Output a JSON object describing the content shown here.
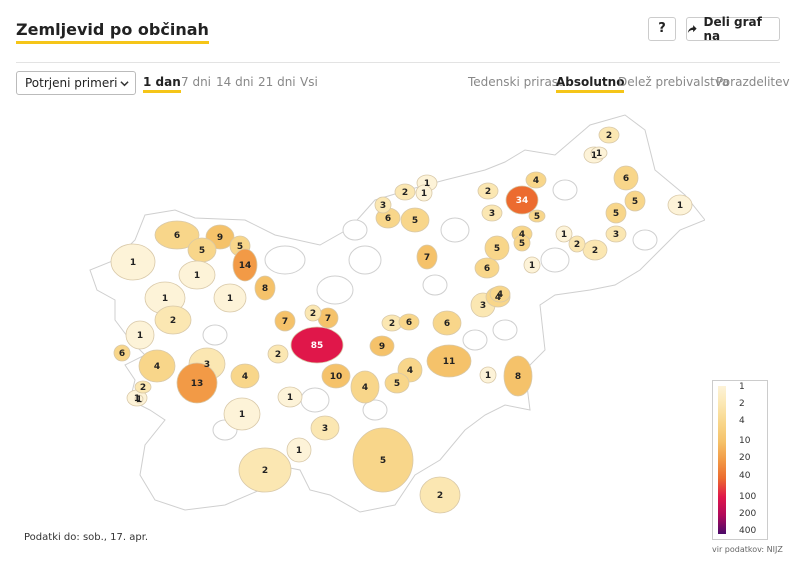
{
  "header": {
    "title": "Zemljevid po občinah",
    "help_label": "?",
    "share_label": "Deli graf na"
  },
  "controls": {
    "select_value": "Potrjeni primeri",
    "ranges": [
      "1 dan",
      "7 dni",
      "14 dni",
      "21 dni",
      "Vsi"
    ],
    "active_range": "1 dan",
    "metrics": [
      "Tedenski prirast",
      "Absolutno",
      "Delež prebivalstva",
      "Porazdelitev"
    ],
    "active_metric": "Absolutno"
  },
  "legend": {
    "ticks": [
      "1",
      "2",
      "4",
      "10",
      "20",
      "40",
      "100",
      "200",
      "400"
    ],
    "colors": [
      "#fdf3d8",
      "#fbe7b2",
      "#f8d68a",
      "#f5c26a",
      "#f29a46",
      "#ec6b2f",
      "#e0174a",
      "#b00a5a",
      "#4b0a69"
    ]
  },
  "footer": {
    "data_date": "Podatki do: sob., 17. apr.",
    "source": "vir podatkov: NIJZ"
  },
  "map": {
    "regions": [
      {
        "name": "kranjska-gora",
        "value": 6
      },
      {
        "name": "jesenice",
        "value": 9
      },
      {
        "name": "bovec",
        "value": 1
      },
      {
        "name": "bohinj",
        "value": 5
      },
      {
        "name": "trzic",
        "value": 5
      },
      {
        "name": "kranj",
        "value": 14
      },
      {
        "name": "radovljica",
        "value": 1
      },
      {
        "name": "tolmin",
        "value": 1
      },
      {
        "name": "kamnik",
        "value": 8
      },
      {
        "name": "skofja-loka",
        "value": 1
      },
      {
        "name": "kobarid",
        "value": 1
      },
      {
        "name": "cerkno",
        "value": 2
      },
      {
        "name": "nova-gorica",
        "value": 6
      },
      {
        "name": "ajdovscina",
        "value": 4
      },
      {
        "name": "idrija",
        "value": 3
      },
      {
        "name": "sezana",
        "value": 13
      },
      {
        "name": "koper",
        "value": 1
      },
      {
        "name": "izola",
        "value": 2
      },
      {
        "name": "piran",
        "value": 1
      },
      {
        "name": "ljubljana",
        "value": 85
      },
      {
        "name": "vrhnika",
        "value": 2
      },
      {
        "name": "logatec",
        "value": 4
      },
      {
        "name": "domzale",
        "value": 7
      },
      {
        "name": "menges",
        "value": 2
      },
      {
        "name": "medvode",
        "value": 7
      },
      {
        "name": "grosuplje",
        "value": 10
      },
      {
        "name": "ivancna-gorica",
        "value": 4
      },
      {
        "name": "kocevje",
        "value": 5
      },
      {
        "name": "ribnica",
        "value": 3
      },
      {
        "name": "postojna",
        "value": 1
      },
      {
        "name": "ilirska-bistrica",
        "value": 2
      },
      {
        "name": "cerknica",
        "value": 1
      },
      {
        "name": "loski-potok",
        "value": 1
      },
      {
        "name": "litija",
        "value": 9
      },
      {
        "name": "zagorje",
        "value": 2
      },
      {
        "name": "trbovlje",
        "value": 6
      },
      {
        "name": "lasko",
        "value": 6
      },
      {
        "name": "celje",
        "value": 4
      },
      {
        "name": "novo-mesto",
        "value": 11
      },
      {
        "name": "trebnje",
        "value": 5
      },
      {
        "name": "brezice",
        "value": 3
      },
      {
        "name": "krsko",
        "value": 4
      },
      {
        "name": "crnomelj",
        "value": 2
      },
      {
        "name": "metlika",
        "value": 8
      },
      {
        "name": "sevnica",
        "value": 1
      },
      {
        "name": "velenje",
        "value": 5
      },
      {
        "name": "slovenj-gradec",
        "value": 6
      },
      {
        "name": "ravne",
        "value": 3
      },
      {
        "name": "dravograd",
        "value": 2
      },
      {
        "name": "mozirje",
        "value": 1
      },
      {
        "name": "zalec",
        "value": 7
      },
      {
        "name": "slovenska-bistrica",
        "value": 5
      },
      {
        "name": "rogaska",
        "value": 6
      },
      {
        "name": "sentjur",
        "value": 4
      },
      {
        "name": "maribor",
        "value": 34
      },
      {
        "name": "ptuj",
        "value": 4
      },
      {
        "name": "lenart",
        "value": 5
      },
      {
        "name": "ormoz",
        "value": 2
      },
      {
        "name": "ljutomer",
        "value": 3
      },
      {
        "name": "murska-sobota",
        "value": 6
      },
      {
        "name": "gornja-radgona",
        "value": 1
      },
      {
        "name": "lendava",
        "value": 1
      },
      {
        "name": "gornji-petrovci",
        "value": 2
      },
      {
        "name": "ruse",
        "value": 3
      },
      {
        "name": "radlje",
        "value": 2
      },
      {
        "name": "podvelka",
        "value": 1
      },
      {
        "name": "pesnica",
        "value": 4
      },
      {
        "name": "kidricevo",
        "value": 5
      },
      {
        "name": "majsperk",
        "value": 5
      },
      {
        "name": "rogatec",
        "value": 1
      },
      {
        "name": "smarje",
        "value": 2
      },
      {
        "name": "kozje",
        "value": 1
      },
      {
        "name": "radenci",
        "value": 5
      },
      {
        "name": "sveti-jurij",
        "value": 1
      }
    ]
  }
}
